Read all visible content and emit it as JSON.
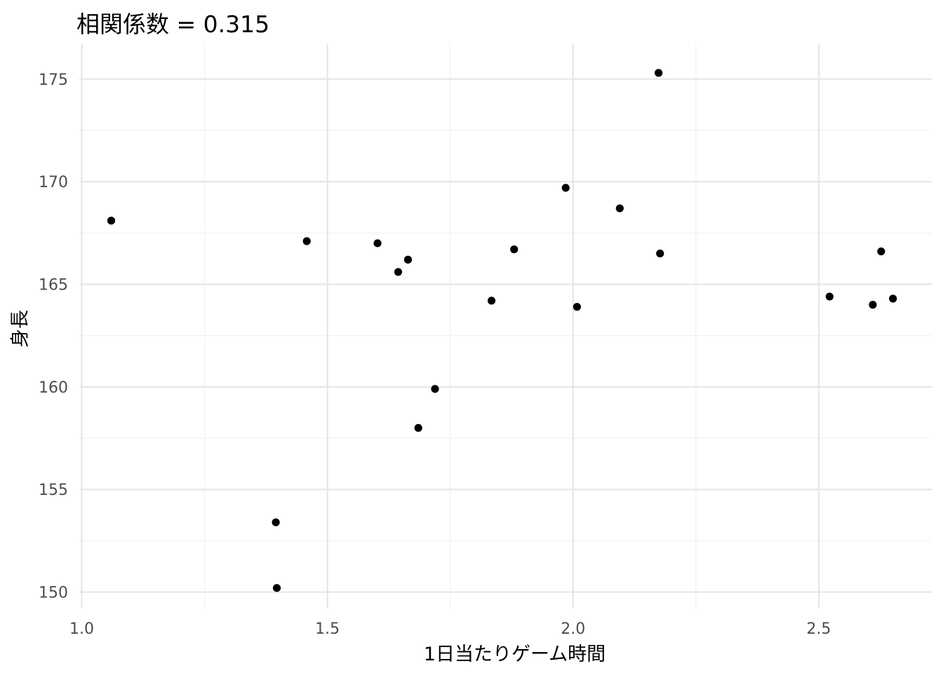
{
  "chart_data": {
    "type": "scatter",
    "title": "相関係数 = 0.315",
    "xlabel": "1日当たりゲーム時間",
    "ylabel": "身長",
    "xlim": [
      0.995,
      2.73
    ],
    "ylim": [
      149.2,
      176.7
    ],
    "x_ticks": [
      1.0,
      1.5,
      2.0,
      2.5
    ],
    "x_tick_labels": [
      "1.0",
      "1.5",
      "2.0",
      "2.5"
    ],
    "x_minor_ticks": [
      1.25,
      1.75,
      2.25
    ],
    "y_ticks": [
      150,
      155,
      160,
      165,
      170,
      175
    ],
    "y_tick_labels": [
      "150",
      "155",
      "160",
      "165",
      "170",
      "175"
    ],
    "y_minor_ticks": [
      152.5,
      157.5,
      162.5,
      167.5,
      172.5
    ],
    "grid": true,
    "legend": "none",
    "colors": {
      "point": "#000000",
      "major_grid": "#e6e6e6",
      "minor_grid": "#f0f0f0",
      "tick_label": "#4d4d4d",
      "background": "#ffffff"
    },
    "points": [
      {
        "x": 1.06,
        "y": 168.1
      },
      {
        "x": 1.395,
        "y": 153.4
      },
      {
        "x": 1.397,
        "y": 150.2
      },
      {
        "x": 1.458,
        "y": 167.1
      },
      {
        "x": 1.602,
        "y": 167.0
      },
      {
        "x": 1.644,
        "y": 165.6
      },
      {
        "x": 1.664,
        "y": 166.2
      },
      {
        "x": 1.685,
        "y": 158.0
      },
      {
        "x": 1.719,
        "y": 159.9
      },
      {
        "x": 1.834,
        "y": 164.2
      },
      {
        "x": 1.88,
        "y": 166.7
      },
      {
        "x": 1.985,
        "y": 169.7
      },
      {
        "x": 2.008,
        "y": 163.9
      },
      {
        "x": 2.095,
        "y": 168.7
      },
      {
        "x": 2.174,
        "y": 175.3
      },
      {
        "x": 2.177,
        "y": 166.5
      },
      {
        "x": 2.522,
        "y": 164.4
      },
      {
        "x": 2.61,
        "y": 164.0
      },
      {
        "x": 2.627,
        "y": 166.6
      },
      {
        "x": 2.651,
        "y": 164.3
      }
    ]
  }
}
